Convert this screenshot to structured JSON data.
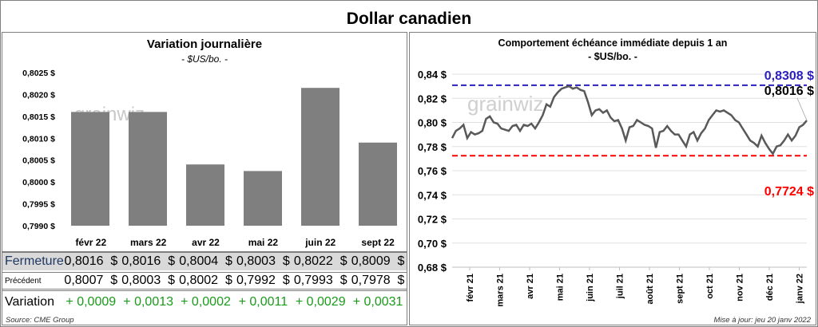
{
  "title": "Dollar canadien",
  "chart_data": [
    {
      "type": "bar",
      "title": "Variation  journalière",
      "subtitle": "- $US/bo. -",
      "categories": [
        "févr 22",
        "mars 22",
        "avr 22",
        "mai 22",
        "juin 22",
        "sept 22"
      ],
      "values": [
        0.8016,
        0.8016,
        0.8004,
        0.80025,
        0.80215,
        0.8009
      ],
      "ylim": [
        0.799,
        0.8025
      ],
      "yticks": [
        "0,7990 $",
        "0,7995 $",
        "0,8000 $",
        "0,8005 $",
        "0,8010 $",
        "0,8015 $",
        "0,8020 $",
        "0,8025 $"
      ],
      "color": "#7f7f7f"
    },
    {
      "type": "line",
      "title": "Comportement échéance immédiate depuis 1 an",
      "subtitle": "- $US/bo. -",
      "ylim": [
        0.68,
        0.84
      ],
      "yticks": [
        "0,68 $",
        "0,70 $",
        "0,72 $",
        "0,74 $",
        "0,76 $",
        "0,78 $",
        "0,80 $",
        "0,82 $",
        "0,84 $"
      ],
      "xticks": [
        "févr 21",
        "mars 21",
        "avr 21",
        "mai 21",
        "juin 21",
        "juil 21",
        "août 21",
        "sept 21",
        "oct 21",
        "nov 21",
        "déc 21",
        "janv 22"
      ],
      "values": [
        0.787,
        0.793,
        0.795,
        0.798,
        0.787,
        0.792,
        0.79,
        0.791,
        0.793,
        0.803,
        0.805,
        0.8,
        0.799,
        0.795,
        0.794,
        0.793,
        0.797,
        0.798,
        0.793,
        0.798,
        0.797,
        0.799,
        0.795,
        0.8,
        0.806,
        0.815,
        0.813,
        0.821,
        0.825,
        0.828,
        0.829,
        0.83,
        0.828,
        0.829,
        0.827,
        0.826,
        0.817,
        0.806,
        0.81,
        0.811,
        0.808,
        0.81,
        0.804,
        0.801,
        0.802,
        0.795,
        0.785,
        0.796,
        0.797,
        0.802,
        0.8,
        0.798,
        0.797,
        0.795,
        0.779,
        0.792,
        0.793,
        0.797,
        0.793,
        0.79,
        0.79,
        0.785,
        0.78,
        0.79,
        0.792,
        0.785,
        0.791,
        0.795,
        0.802,
        0.806,
        0.81,
        0.809,
        0.81,
        0.808,
        0.806,
        0.802,
        0.8,
        0.795,
        0.79,
        0.785,
        0.783,
        0.78,
        0.789,
        0.783,
        0.778,
        0.774,
        0.78,
        0.781,
        0.785,
        0.79,
        0.785,
        0.789,
        0.796,
        0.798,
        0.8016
      ],
      "high": {
        "value": 0.8308,
        "label": "0,8308 $",
        "color": "#2b1fbf"
      },
      "low": {
        "value": 0.7724,
        "label": "0,7724 $",
        "color": "#ff0000"
      },
      "last_label": "0,8016 $",
      "line_color": "#595959"
    }
  ],
  "table": {
    "rows": [
      {
        "label": "Fermeture",
        "values": [
          "0,8016  $",
          "0,8016  $",
          "0,8004  $",
          "0,8003  $",
          "0,8022  $",
          "0,8009  $"
        ]
      },
      {
        "label": "Précédent",
        "values": [
          "0,8007  $",
          "0,8003  $",
          "0,8002  $",
          "0,7992  $",
          "0,7993  $",
          "0,7978  $"
        ]
      },
      {
        "label": "Variation",
        "values": [
          "+ 0,0009",
          "+ 0,0013",
          "+ 0,0002",
          "+ 0,0011",
          "+ 0,0029",
          "+ 0,0031"
        ]
      }
    ],
    "positive_color": "#1a9a1a"
  },
  "watermark": "grainwiz",
  "source": "Source: CME Group",
  "updated": "Mise à jour: jeu 20 janv 2022"
}
